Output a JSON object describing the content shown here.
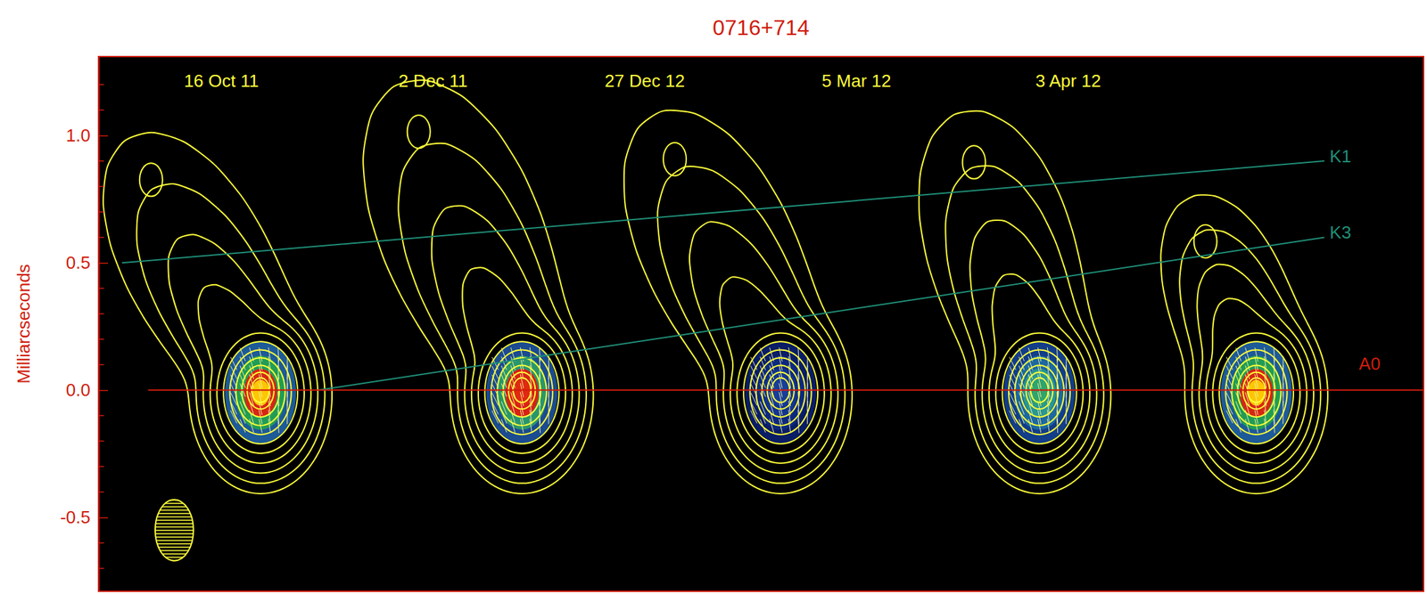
{
  "chart_data": {
    "type": "contour",
    "title": "0716+714",
    "ylabel": "Milliarcseconds",
    "xlim": [
      0,
      5.07
    ],
    "xticks": [],
    "ylim": [
      -0.79,
      1.31
    ],
    "yticks": [
      {
        "value": 1,
        "label": "1.0"
      },
      {
        "value": 0.5,
        "label": "0.5"
      },
      {
        "value": 0,
        "label": "0.0"
      },
      {
        "value": -0.5,
        "label": "-0.5"
      }
    ],
    "yticks_minor": [
      -0.7,
      -0.6,
      -0.4,
      -0.3,
      -0.2,
      -0.1,
      0.1,
      0.2,
      0.3,
      0.4,
      0.6,
      0.7,
      0.8,
      0.9,
      1.1,
      1.2
    ],
    "tick_labels": "y",
    "epochs": [
      {
        "label": "16 Oct 11",
        "label_x": 0.47,
        "core_x": 0.62,
        "colors": [
          "#1f5fa0",
          "#22a050",
          "#e02010",
          "#ffd000"
        ]
      },
      {
        "label": "2 Dec 11",
        "label_x": 1.28,
        "core_x": 1.62,
        "colors": [
          "#1c4f98",
          "#2a9a6a",
          "#e01a10",
          "#e02a10"
        ]
      },
      {
        "label": "27 Dec 12",
        "label_x": 2.09,
        "core_x": 2.61,
        "colors": [
          "#0a1f6a",
          "#0d2a80",
          "#12358f",
          "#183f9a"
        ]
      },
      {
        "label": "5 Mar 12",
        "label_x": 2.9,
        "core_x": 3.6,
        "colors": [
          "#13408f",
          "#1d6aa0",
          "#2a9a90",
          "#2fa46a"
        ]
      },
      {
        "label": "3 Apr 12",
        "label_x": 3.71,
        "core_x": 4.43,
        "colors": [
          "#1f5fa0",
          "#22a050",
          "#e02010",
          "#ffd000"
        ]
      }
    ],
    "series": [
      {
        "name": "K1",
        "color": "#1f8f78",
        "x": [
          0.09,
          4.69
        ],
        "values": [
          0.5,
          0.9
        ]
      },
      {
        "name": "K3",
        "color": "#1f8f78",
        "x": [
          0.84,
          4.69
        ],
        "values": [
          0.0,
          0.6
        ]
      },
      {
        "name": "A0",
        "color": "#d01c0c",
        "x": [
          0.19,
          5.07
        ],
        "values": [
          0,
          0
        ]
      }
    ]
  }
}
